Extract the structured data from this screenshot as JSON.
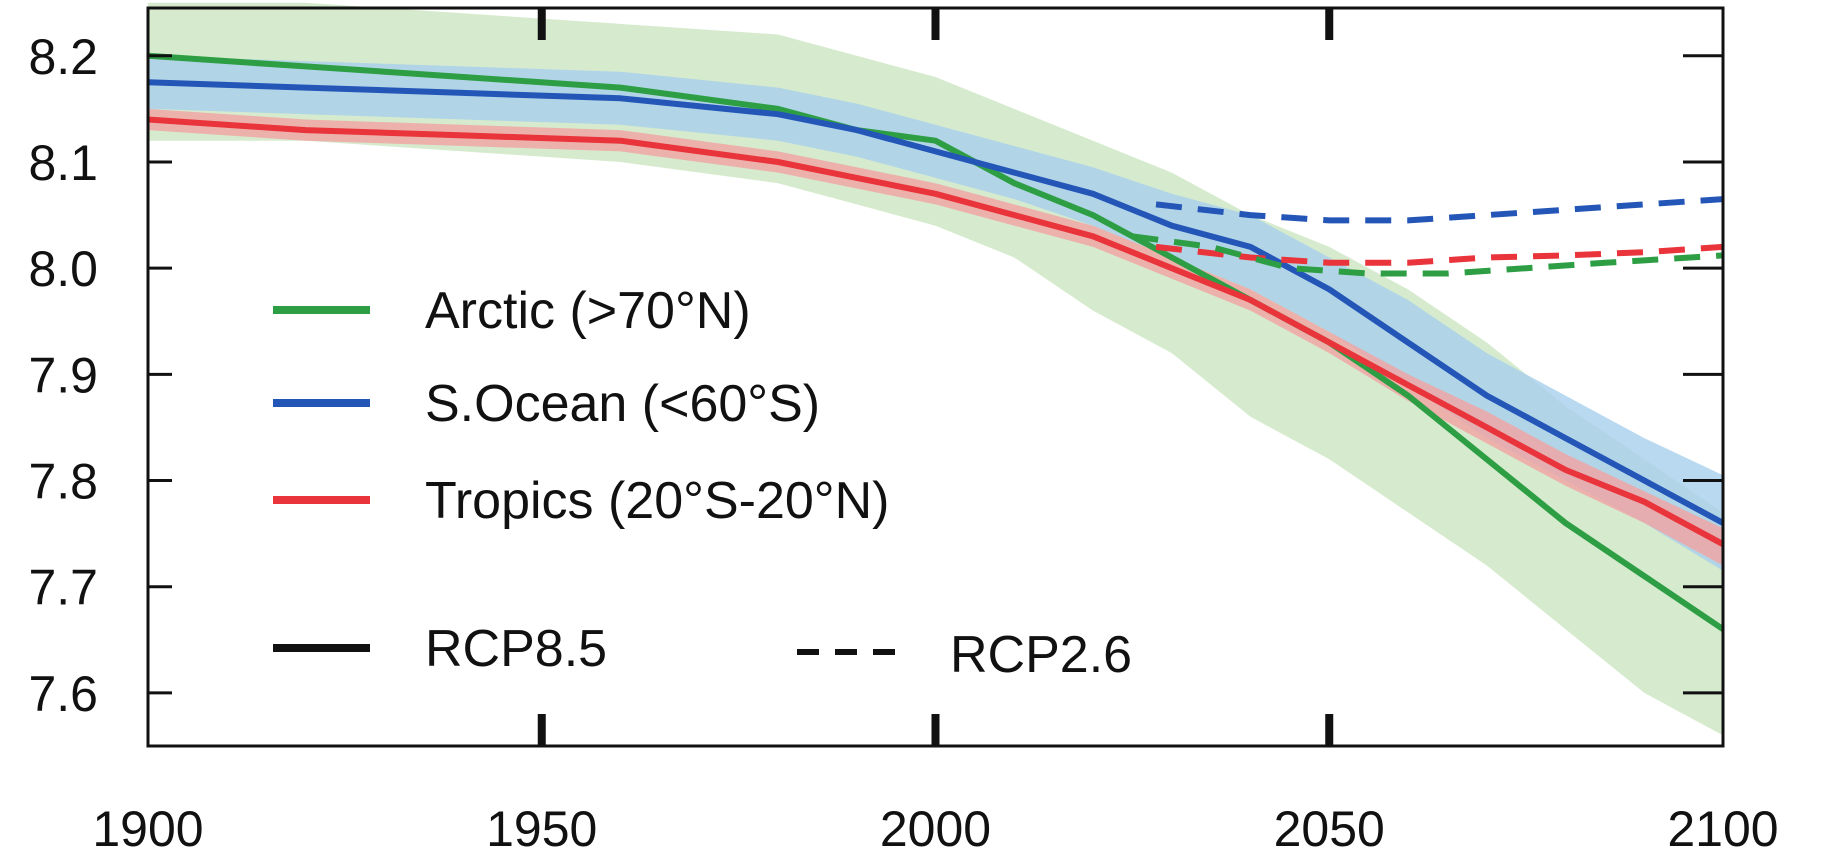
{
  "chart_data": {
    "type": "line",
    "title": "",
    "xlabel": "",
    "ylabel": "",
    "xlim": [
      1900,
      2100
    ],
    "ylim": [
      7.55,
      8.245
    ],
    "x_ticks": [
      1900,
      1950,
      2000,
      2050,
      2100
    ],
    "y_ticks": [
      7.6,
      7.7,
      7.8,
      7.9,
      8.0,
      8.1,
      8.2
    ],
    "grid": false,
    "legend_position": "left",
    "legend": {
      "regions": [
        {
          "label": "Arctic (>70°N)",
          "color": "#2e9e45"
        },
        {
          "label": "S.Ocean (<60°S)",
          "color": "#2456b8"
        },
        {
          "label": "Tropics (20°S-20°N)",
          "color": "#e8343a"
        }
      ],
      "styles": [
        {
          "label": "RCP8.5",
          "dash": "solid"
        },
        {
          "label": "RCP2.6",
          "dash": "dashed"
        }
      ]
    },
    "colors": {
      "arctic": "#2e9e45",
      "arctic_band": "#cfe8c6",
      "southern_ocean": "#2456b8",
      "southern_ocean_band": "#a7d0ee",
      "tropics": "#e8343a",
      "tropics_band": "#f2a2a2"
    },
    "series": [
      {
        "name": "Arctic (>70°N)",
        "scenario": "RCP8.5",
        "color": "#2e9e45",
        "x": [
          1900,
          1920,
          1940,
          1960,
          1980,
          1990,
          2000,
          2010,
          2020,
          2030,
          2040,
          2050,
          2060,
          2070,
          2080,
          2090,
          2100
        ],
        "y": [
          8.2,
          8.19,
          8.18,
          8.17,
          8.15,
          8.13,
          8.12,
          8.08,
          8.05,
          8.01,
          7.97,
          7.93,
          7.88,
          7.82,
          7.76,
          7.71,
          7.66
        ],
        "band_lower": [
          8.12,
          8.12,
          8.11,
          8.1,
          8.08,
          8.06,
          8.04,
          8.01,
          7.96,
          7.92,
          7.86,
          7.82,
          7.77,
          7.72,
          7.66,
          7.6,
          7.56
        ],
        "band_upper": [
          8.25,
          8.25,
          8.24,
          8.23,
          8.22,
          8.2,
          8.18,
          8.15,
          8.12,
          8.09,
          8.05,
          8.02,
          7.98,
          7.93,
          7.87,
          7.82,
          7.77
        ]
      },
      {
        "name": "S.Ocean (<60°S)",
        "scenario": "RCP8.5",
        "color": "#2456b8",
        "x": [
          1900,
          1920,
          1940,
          1960,
          1980,
          1990,
          2000,
          2010,
          2020,
          2030,
          2040,
          2050,
          2060,
          2070,
          2080,
          2090,
          2100
        ],
        "y": [
          8.175,
          8.17,
          8.165,
          8.16,
          8.145,
          8.13,
          8.11,
          8.09,
          8.07,
          8.04,
          8.02,
          7.98,
          7.93,
          7.88,
          7.84,
          7.8,
          7.76
        ],
        "band_lower": [
          8.15,
          8.145,
          8.14,
          8.135,
          8.12,
          8.105,
          8.085,
          8.065,
          8.04,
          8.01,
          7.98,
          7.94,
          7.89,
          7.84,
          7.8,
          7.76,
          7.715
        ],
        "band_upper": [
          8.2,
          8.195,
          8.19,
          8.185,
          8.17,
          8.155,
          8.135,
          8.115,
          8.095,
          8.07,
          8.05,
          8.01,
          7.97,
          7.92,
          7.88,
          7.84,
          7.805
        ]
      },
      {
        "name": "Tropics (20°S-20°N)",
        "scenario": "RCP8.5",
        "color": "#e8343a",
        "x": [
          1900,
          1920,
          1940,
          1960,
          1980,
          1990,
          2000,
          2010,
          2020,
          2030,
          2040,
          2050,
          2060,
          2070,
          2080,
          2090,
          2100
        ],
        "y": [
          8.14,
          8.13,
          8.125,
          8.12,
          8.1,
          8.085,
          8.07,
          8.05,
          8.03,
          8.0,
          7.97,
          7.93,
          7.89,
          7.85,
          7.81,
          7.78,
          7.74
        ],
        "band_lower": [
          8.13,
          8.12,
          8.115,
          8.11,
          8.09,
          8.075,
          8.06,
          8.04,
          8.02,
          7.99,
          7.96,
          7.92,
          7.875,
          7.835,
          7.795,
          7.76,
          7.72
        ],
        "band_upper": [
          8.15,
          8.14,
          8.135,
          8.13,
          8.11,
          8.095,
          8.08,
          8.06,
          8.04,
          8.01,
          7.98,
          7.94,
          7.9,
          7.865,
          7.825,
          7.79,
          7.755
        ]
      },
      {
        "name": "S.Ocean (<60°S)",
        "scenario": "RCP2.6",
        "color": "#2456b8",
        "x": [
          2028,
          2040,
          2050,
          2060,
          2070,
          2080,
          2090,
          2100
        ],
        "y": [
          8.06,
          8.05,
          8.045,
          8.045,
          8.05,
          8.055,
          8.06,
          8.065
        ]
      },
      {
        "name": "Tropics (20°S-20°N)",
        "scenario": "RCP2.6",
        "color": "#e8343a",
        "x": [
          2028,
          2040,
          2050,
          2060,
          2070,
          2080,
          2090,
          2100
        ],
        "y": [
          8.02,
          8.01,
          8.005,
          8.005,
          8.01,
          8.012,
          8.015,
          8.02
        ]
      },
      {
        "name": "Arctic (>70°N)",
        "scenario": "RCP2.6",
        "color": "#2e9e45",
        "x": [
          2025,
          2035,
          2045,
          2055,
          2065,
          2075,
          2085,
          2100
        ],
        "y": [
          8.03,
          8.02,
          8.0,
          7.995,
          7.995,
          8.0,
          8.005,
          8.012
        ]
      }
    ]
  }
}
